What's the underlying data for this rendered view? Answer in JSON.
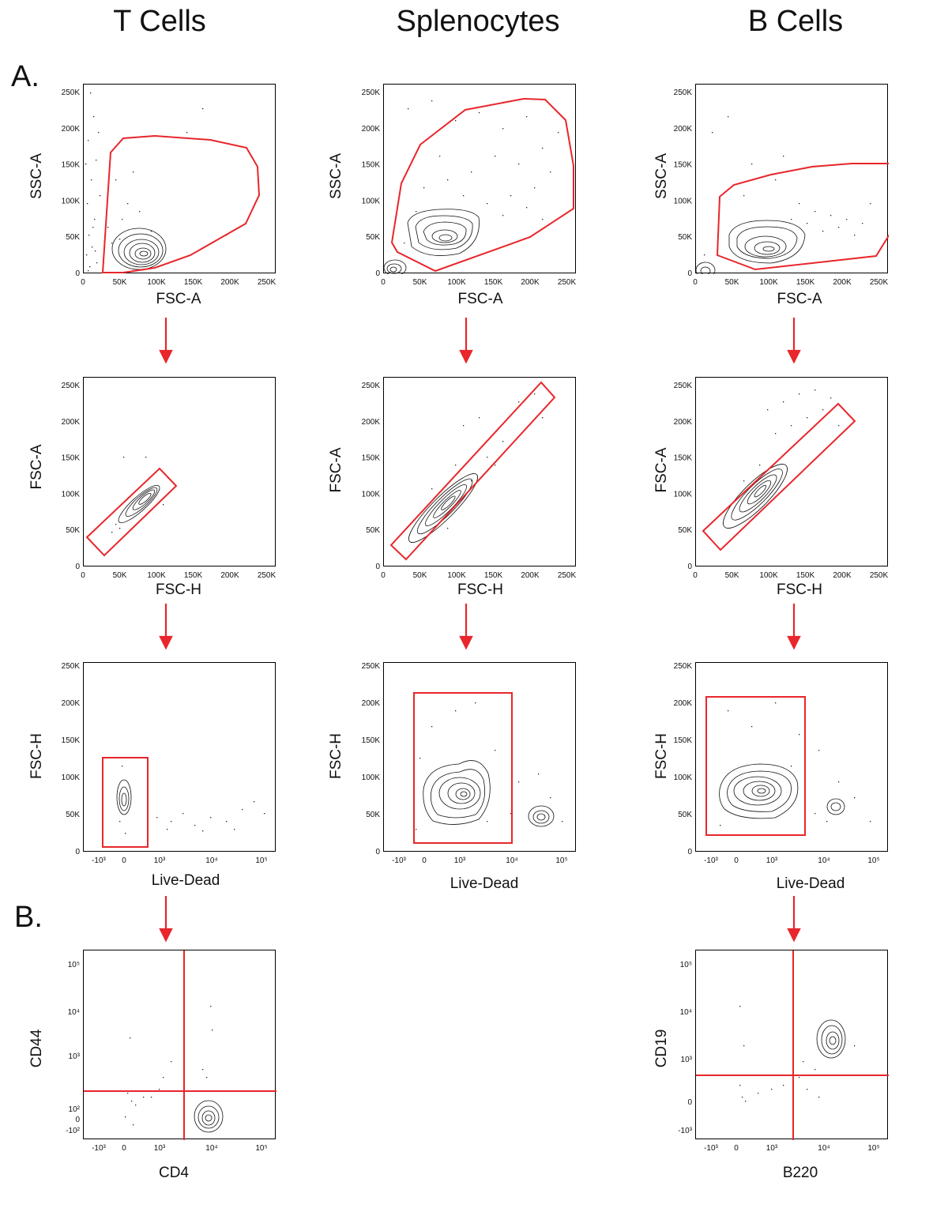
{
  "columns": [
    "T Cells",
    "Splenocytes",
    "B Cells"
  ],
  "sections": {
    "a": "A.",
    "b": "B."
  },
  "ticks": {
    "linear": [
      "0",
      "50K",
      "100K",
      "150K",
      "200K",
      "250K"
    ],
    "biex_x": [
      "-10³",
      "0",
      "10³",
      "10⁴",
      "10⁵"
    ],
    "biex_y_cd44": [
      "10⁵",
      "10⁴",
      "10³",
      "10²",
      "0",
      "-10²"
    ],
    "biex_y_cd19": [
      "10⁵",
      "10⁴",
      "10³",
      "0",
      "-10³"
    ]
  },
  "plots": {
    "t1": {
      "x": "FSC-A",
      "y": "SSC-A"
    },
    "s1": {
      "x": "FSC-A",
      "y": "SSC-A"
    },
    "b1": {
      "x": "FSC-A",
      "y": "SSC-A"
    },
    "t2": {
      "x": "FSC-H",
      "y": "FSC-A"
    },
    "s2": {
      "x": "FSC-H",
      "y": "FSC-A"
    },
    "b2": {
      "x": "FSC-H",
      "y": "FSC-A"
    },
    "t3": {
      "x": "Live-Dead",
      "y": "FSC-H"
    },
    "s3": {
      "x": "Live-Dead",
      "y": "FSC-H"
    },
    "b3": {
      "x": "Live-Dead",
      "y": "FSC-H"
    },
    "t4": {
      "x": "CD4",
      "y": "CD44"
    },
    "b4": {
      "x": "B220",
      "y": "CD19"
    }
  },
  "colors": {
    "gate": "#e8262b",
    "arrow": "#e8262b",
    "contour": "#111111"
  }
}
